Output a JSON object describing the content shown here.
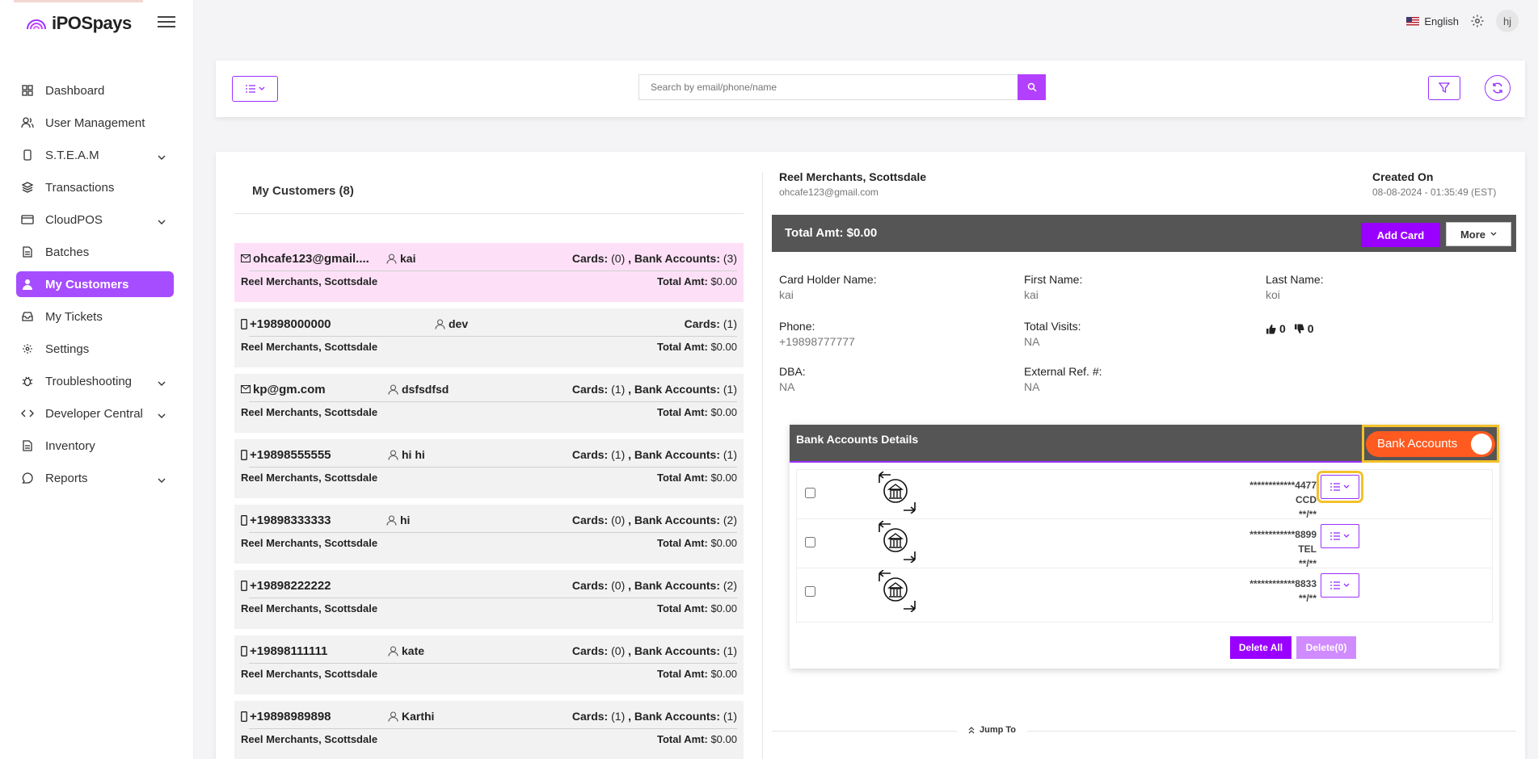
{
  "app": {
    "name": "iPOSpays"
  },
  "topbar": {
    "language": "English",
    "avatar_initials": "hj"
  },
  "sidebar": {
    "items": [
      {
        "label": "Dashboard",
        "icon": "grid-icon",
        "has_chevron": false
      },
      {
        "label": "User Management",
        "icon": "users-icon",
        "has_chevron": false
      },
      {
        "label": "S.T.E.A.M",
        "icon": "phone-icon",
        "has_chevron": true
      },
      {
        "label": "Transactions",
        "icon": "layers-icon",
        "has_chevron": false
      },
      {
        "label": "CloudPOS",
        "icon": "card-icon",
        "has_chevron": true
      },
      {
        "label": "Batches",
        "icon": "document-icon",
        "has_chevron": false
      },
      {
        "label": "My Customers",
        "icon": "person-icon",
        "has_chevron": false,
        "active": true
      },
      {
        "label": "My Tickets",
        "icon": "inbox-icon",
        "has_chevron": false
      },
      {
        "label": "Settings",
        "icon": "gear-icon",
        "has_chevron": false
      },
      {
        "label": "Troubleshooting",
        "icon": "bug-icon",
        "has_chevron": true
      },
      {
        "label": "Developer Central",
        "icon": "code-icon",
        "has_chevron": true
      },
      {
        "label": "Inventory",
        "icon": "document-icon",
        "has_chevron": false
      },
      {
        "label": "Reports",
        "icon": "chat-icon",
        "has_chevron": true
      }
    ]
  },
  "search": {
    "placeholder": "Search by email/phone/name"
  },
  "customers": {
    "title": "My Customers (8)",
    "items": [
      {
        "contact_type": "email",
        "contact": "ohcafe123@gmail....",
        "name": "kai",
        "cards_label": "Cards:",
        "cards": "(0)",
        "bank_label": "Bank Accounts:",
        "bank": "(3)",
        "merchant": "Reel Merchants, Scottsdale",
        "total_label": "Total Amt:",
        "total": "$0.00",
        "selected": true
      },
      {
        "contact_type": "phone",
        "contact": "+19898000000",
        "name": "dev",
        "cards_label": "Cards:",
        "cards": "(1)",
        "bank_label": "",
        "bank": "",
        "merchant": "Reel Merchants, Scottsdale",
        "total_label": "Total Amt:",
        "total": "$0.00"
      },
      {
        "contact_type": "email",
        "contact": "kp@gm.com",
        "name": "dsfsdfsd",
        "cards_label": "Cards:",
        "cards": "(1)",
        "bank_label": "Bank Accounts:",
        "bank": "(1)",
        "merchant": "Reel Merchants, Scottsdale",
        "total_label": "Total Amt:",
        "total": "$0.00"
      },
      {
        "contact_type": "phone",
        "contact": "+19898555555",
        "name": "hi hi",
        "cards_label": "Cards:",
        "cards": "(1)",
        "bank_label": "Bank Accounts:",
        "bank": "(1)",
        "merchant": "Reel Merchants, Scottsdale",
        "total_label": "Total Amt:",
        "total": "$0.00"
      },
      {
        "contact_type": "phone",
        "contact": "+19898333333",
        "name": "hi",
        "cards_label": "Cards:",
        "cards": "(0)",
        "bank_label": "Bank Accounts:",
        "bank": "(2)",
        "merchant": "Reel Merchants, Scottsdale",
        "total_label": "Total Amt:",
        "total": "$0.00"
      },
      {
        "contact_type": "phone",
        "contact": "+19898222222",
        "name": "",
        "cards_label": "Cards:",
        "cards": "(0)",
        "bank_label": "Bank Accounts:",
        "bank": "(2)",
        "merchant": "Reel Merchants, Scottsdale",
        "total_label": "Total Amt:",
        "total": "$0.00"
      },
      {
        "contact_type": "phone",
        "contact": "+19898111111",
        "name": "kate",
        "cards_label": "Cards:",
        "cards": "(0)",
        "bank_label": "Bank Accounts:",
        "bank": "(1)",
        "merchant": "Reel Merchants, Scottsdale",
        "total_label": "Total Amt:",
        "total": "$0.00"
      },
      {
        "contact_type": "phone",
        "contact": "+19898989898",
        "name": "Karthi",
        "cards_label": "Cards:",
        "cards": "(1)",
        "bank_label": "Bank Accounts:",
        "bank": "(1)",
        "merchant": "Reel Merchants, Scottsdale",
        "total_label": "Total Amt:",
        "total": "$0.00"
      }
    ]
  },
  "detail": {
    "merchant_name": "Reel Merchants, Scottsdale",
    "merchant_email": "ohcafe123@gmail.com",
    "created_label": "Created On",
    "created_value": "08-08-2024 - 01:35:49 (EST)",
    "total_text": "Total Amt: $0.00",
    "add_card_label": "Add Card",
    "more_label": "More",
    "fields": {
      "card_holder_label": "Card Holder Name:",
      "card_holder_value": "kai",
      "first_name_label": "First Name:",
      "first_name_value": "kai",
      "last_name_label": "Last Name:",
      "last_name_value": "koi",
      "phone_label": "Phone:",
      "phone_value": "+19898777777",
      "visits_label": "Total Visits:",
      "visits_value": "NA",
      "dba_label": "DBA:",
      "dba_value": "NA",
      "ext_ref_label": "External Ref. #:",
      "ext_ref_value": "NA"
    },
    "likes": "0",
    "dislikes": "0"
  },
  "bank_panel": {
    "title": "Bank Accounts Details",
    "toggle_label": "Bank Accounts",
    "accounts": [
      {
        "number": "************4477",
        "type": "CCD",
        "expiry": "**/**"
      },
      {
        "number": "************8899",
        "type": "TEL",
        "expiry": "**/**"
      },
      {
        "number": "************8833",
        "type": "",
        "expiry": "**/**"
      }
    ],
    "delete_all_label": "Delete All",
    "delete_selected_label": "Delete(0)"
  },
  "jump_to_label": "Jump To",
  "colors": {
    "accent": "#9a00ff",
    "active_nav": "#a64dff",
    "selected_row": "#fde0f7",
    "toggle": "#ff5a1f",
    "highlight": "#f3c12b"
  }
}
